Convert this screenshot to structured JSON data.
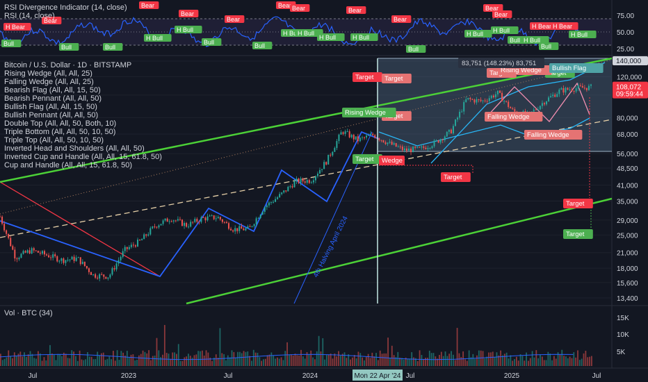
{
  "rsi_pane": {
    "title": "RSI Divergence Indicator (14, close)",
    "subtitle": "RSI (14, close)",
    "levels": [
      "75.00",
      "50.00",
      "25.00"
    ],
    "bear_label": "Bear",
    "hbear_label": "H Bear",
    "bull_label": "Bull",
    "hbull_label": "H Bull"
  },
  "price_pane": {
    "symbol_line": "Bitcoin / U.S. Dollar · 1D · BITSTAMP",
    "indicators": [
      "Rising Wedge (All, All, 25)",
      "Falling Wedge (All, All, 25)",
      "Bearish Flag (All, All, 15, 50)",
      "Bearish Pennant (All, All, 50)",
      "Bullish Flag (All, All, 15, 50)",
      "Bullish Pennant (All, All, 50)",
      "Double Top (All, All, 50, Both, 10)",
      "Triple Bottom (All, All, 50, 10, 50)",
      "Triple Top (All, All, 50, 10, 50)",
      "Inverted Head and Shoulders (All, All, 50)",
      "Inverted Cup and Handle (All, All, 15, 61.8, 50)",
      "Cup and Handle (All, All, 15, 61.8, 50)"
    ],
    "price_ticks": [
      "140,000",
      "120,000",
      "100,000",
      "80,000",
      "68,000",
      "56,000",
      "48,500",
      "41,000",
      "35,000",
      "29,000",
      "25,000",
      "21,000",
      "18,000",
      "15,600",
      "13,400"
    ],
    "current_price": "108,072",
    "countdown": "09:59:44",
    "measure_label": "83,751 (148.23%) 83,751",
    "halving_label": "4th Halving April 2024",
    "target_label": "Target",
    "pattern_labels": {
      "rising_wedge": "Rising Wedge",
      "falling_wedge": "Falling Wedge",
      "bullish_flag": "Bullish Flag",
      "wedge_fragment": "Wedge"
    },
    "colors": {
      "up": "#26a69a",
      "down": "#ef5350",
      "trend_green": "#4cd137",
      "pattern_blue": "#2962ff",
      "label_red": "#f23645",
      "label_green": "#4caf50"
    }
  },
  "volume_pane": {
    "title": "Vol · BTC (34)",
    "ticks": [
      "15K",
      "10K",
      "5K"
    ]
  },
  "time_axis": {
    "ticks": [
      "Jul",
      "2023",
      "Jul",
      "2024",
      "Jul",
      "2025",
      "Jul"
    ],
    "crosshair_label": "Mon 22 Apr '24"
  },
  "chart_data": {
    "type": "line",
    "title": "Bitcoin / U.S. Dollar · 1D · BITSTAMP",
    "y_scale": "log",
    "x_axis_ticks": [
      "Jul",
      "2023",
      "Jul",
      "2024",
      "Jul",
      "2025",
      "Jul"
    ],
    "series": [
      {
        "name": "Bitcoin / U.S. Dollar",
        "x": [
          "2022-05",
          "2022-06",
          "2022-07",
          "2022-08",
          "2022-09",
          "2022-10",
          "2022-11",
          "2022-12",
          "2023-01",
          "2023-02",
          "2023-03",
          "2023-04",
          "2023-05",
          "2023-06",
          "2023-07",
          "2023-08",
          "2023-09",
          "2023-10",
          "2023-11",
          "2023-12",
          "2024-01",
          "2024-02",
          "2024-03",
          "2024-04",
          "2024-05",
          "2024-06",
          "2024-07",
          "2024-08",
          "2024-09",
          "2024-10",
          "2024-11",
          "2024-12",
          "2025-01",
          "2025-02",
          "2025-03",
          "2025-04",
          "2025-05",
          "2025-06",
          "2025-07"
        ],
        "y": [
          30000,
          20000,
          21500,
          20500,
          19500,
          19800,
          16800,
          16600,
          21500,
          23500,
          27500,
          29500,
          27500,
          29500,
          29800,
          26500,
          26500,
          33000,
          37000,
          42500,
          43000,
          52000,
          70000,
          64000,
          67500,
          62000,
          58000,
          58500,
          62500,
          70000,
          96000,
          94000,
          102000,
          85000,
          82000,
          94000,
          104500,
          107000,
          108072
        ]
      }
    ],
    "annotations": [
      "4th Halving April 2024",
      "83,751 (148.23%) 83,751"
    ]
  }
}
